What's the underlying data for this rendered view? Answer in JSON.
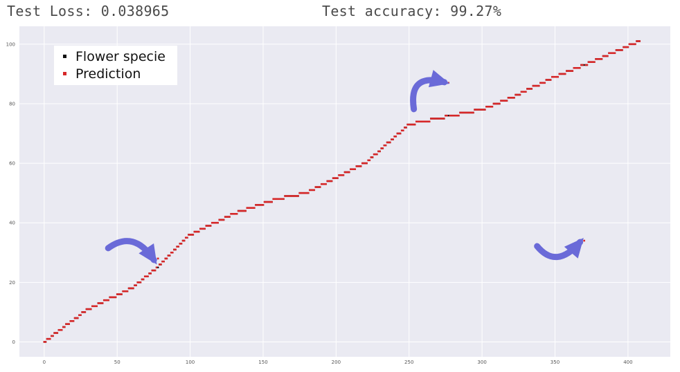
{
  "header": {
    "test_loss": "Test Loss: 0.038965",
    "test_accuracy": "Test accuracy: 99.27%"
  },
  "colors": {
    "plot_background": "#eaeaf2",
    "grid": "#ffffff",
    "prediction": "#d62728",
    "flower_specie": "#111111",
    "arrow": "#6a6ad8"
  },
  "chart_data": {
    "type": "scatter",
    "title": "",
    "xlabel": "",
    "ylabel": "",
    "xlim": [
      -17,
      429
    ],
    "ylim": [
      -5,
      106
    ],
    "x_ticks": [
      0,
      50,
      100,
      150,
      200,
      250,
      300,
      350,
      400
    ],
    "y_ticks": [
      0,
      20,
      40,
      60,
      80,
      100
    ],
    "grid": true,
    "legend_position": "top-left",
    "legend": [
      {
        "label": "Flower specie",
        "color": "#111111"
      },
      {
        "label": "Prediction",
        "color": "#d62728"
      }
    ],
    "series": [
      {
        "name": "Flower specie",
        "generated": "step",
        "x_range": [
          0,
          408
        ],
        "anchors": [
          [
            0,
            0
          ],
          [
            30,
            11
          ],
          [
            60,
            18
          ],
          [
            80,
            26
          ],
          [
            100,
            36
          ],
          [
            130,
            43
          ],
          [
            160,
            48
          ],
          [
            180,
            50
          ],
          [
            220,
            60
          ],
          [
            250,
            73
          ],
          [
            280,
            76
          ],
          [
            300,
            78
          ],
          [
            320,
            82
          ],
          [
            350,
            89
          ],
          [
            375,
            94
          ],
          [
            408,
            101
          ]
        ]
      },
      {
        "name": "Prediction",
        "generated": "step",
        "x_range": [
          0,
          408
        ],
        "anchors": [
          [
            0,
            0
          ],
          [
            30,
            11
          ],
          [
            60,
            18
          ],
          [
            80,
            26
          ],
          [
            100,
            36
          ],
          [
            130,
            43
          ],
          [
            160,
            48
          ],
          [
            180,
            50
          ],
          [
            220,
            60
          ],
          [
            250,
            73
          ],
          [
            280,
            76
          ],
          [
            300,
            78
          ],
          [
            320,
            82
          ],
          [
            350,
            89
          ],
          [
            375,
            94
          ],
          [
            408,
            101
          ]
        ],
        "outliers": [
          [
            78,
            28
          ],
          [
            277,
            87
          ],
          [
            370,
            34
          ]
        ]
      }
    ],
    "annotations": [
      {
        "type": "arrow",
        "points_to": [
          78,
          28
        ]
      },
      {
        "type": "arrow",
        "points_to": [
          277,
          87
        ]
      },
      {
        "type": "arrow",
        "points_to": [
          370,
          34
        ]
      }
    ]
  }
}
